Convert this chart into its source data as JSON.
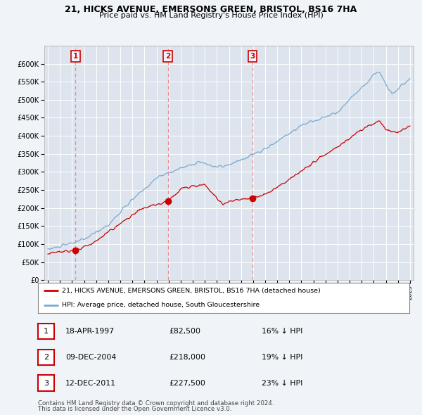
{
  "title_line1": "21, HICKS AVENUE, EMERSONS GREEN, BRISTOL, BS16 7HA",
  "title_line2": "Price paid vs. HM Land Registry's House Price Index (HPI)",
  "legend_label_red": "21, HICKS AVENUE, EMERSONS GREEN, BRISTOL, BS16 7HA (detached house)",
  "legend_label_blue": "HPI: Average price, detached house, South Gloucestershire",
  "footer_line1": "Contains HM Land Registry data © Crown copyright and database right 2024.",
  "footer_line2": "This data is licensed under the Open Government Licence v3.0.",
  "sales": [
    {
      "num": 1,
      "date_label": "18-APR-1997",
      "price": 82500,
      "pct": "16% ↓ HPI",
      "x": 1997.29
    },
    {
      "num": 2,
      "date_label": "09-DEC-2004",
      "price": 218000,
      "pct": "19% ↓ HPI",
      "x": 2004.94
    },
    {
      "num": 3,
      "date_label": "12-DEC-2011",
      "price": 227500,
      "pct": "23% ↓ HPI",
      "x": 2011.94
    }
  ],
  "ylim": [
    0,
    650000
  ],
  "xlim": [
    1994.7,
    2025.3
  ],
  "yticks": [
    0,
    50000,
    100000,
    150000,
    200000,
    250000,
    300000,
    350000,
    400000,
    450000,
    500000,
    550000,
    600000
  ],
  "ytick_labels": [
    "£0",
    "£50K",
    "£100K",
    "£150K",
    "£200K",
    "£250K",
    "£300K",
    "£350K",
    "£400K",
    "£450K",
    "£500K",
    "£550K",
    "£600K"
  ],
  "bg_color": "#f0f4f8",
  "plot_bg_color": "#dde4ee",
  "grid_color": "#ffffff",
  "red_color": "#cc0000",
  "blue_color": "#7aaad0",
  "dashed_line_color": "#ee8888"
}
